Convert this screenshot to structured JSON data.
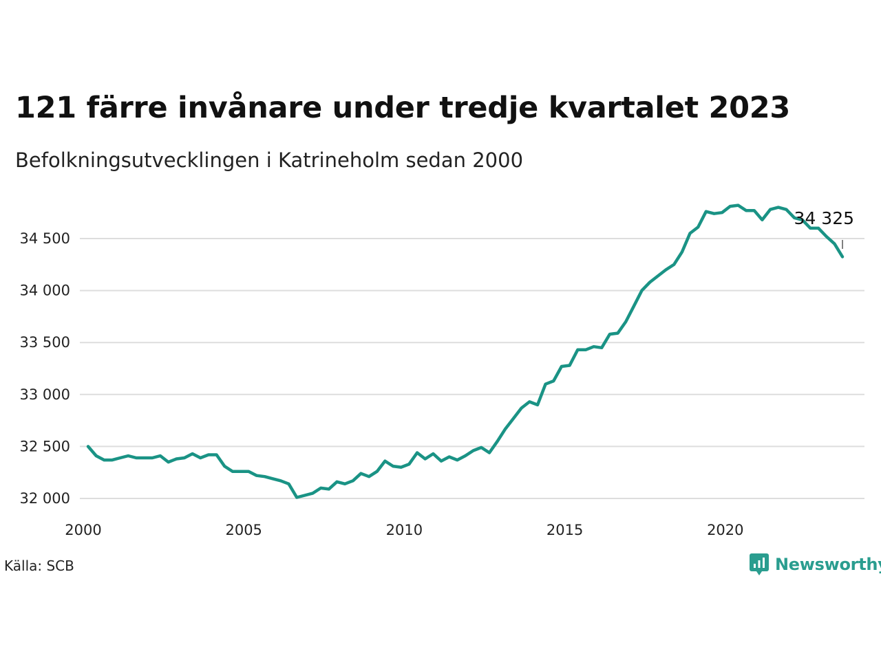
{
  "header": {
    "title": "121 färre invånare under tredje kvartalet 2023",
    "subtitle": "Befolkningsutvecklingen i Katrineholm sedan 2000"
  },
  "footer": {
    "source": "Källa: SCB",
    "brand": "Newsworthy",
    "brand_icon": "bar-chart-speech-bubble-icon"
  },
  "colors": {
    "line": "#1a9385",
    "grid": "#dddddd",
    "brand": "#2a9d8f"
  },
  "chart_data": {
    "type": "line",
    "title": "121 färre invånare under tredje kvartalet 2023",
    "subtitle": "Befolkningsutvecklingen i Katrineholm sedan 2000",
    "xlabel": "",
    "ylabel": "",
    "xlim": [
      2000,
      2024.6
    ],
    "ylim": [
      31950,
      34850
    ],
    "x_ticks": [
      2000,
      2005,
      2010,
      2015,
      2020
    ],
    "x_tick_labels": [
      "2000",
      "2005",
      "2010",
      "2015",
      "2020"
    ],
    "y_ticks": [
      32000,
      32500,
      33000,
      33500,
      34000,
      34500
    ],
    "y_tick_labels": [
      "32 000",
      "32 500",
      "33 000",
      "33 500",
      "34 000",
      "34 500"
    ],
    "grid": "horizontal",
    "last_value_label": "34 325",
    "series": [
      {
        "x": [
          2000.0,
          2000.25,
          2000.5,
          2000.75,
          2001.0,
          2001.25,
          2001.5,
          2001.75,
          2002.0,
          2002.25,
          2002.5,
          2002.75,
          2003.0,
          2003.25,
          2003.5,
          2003.75,
          2004.0,
          2004.25,
          2004.5,
          2004.75,
          2005.0,
          2005.25,
          2005.5,
          2005.75,
          2006.0,
          2006.25,
          2006.5,
          2006.75,
          2007.0,
          2007.25,
          2007.5,
          2007.75,
          2008.0,
          2008.25,
          2008.5,
          2008.75,
          2009.0,
          2009.25,
          2009.5,
          2009.75,
          2010.0,
          2010.25,
          2010.5,
          2010.75,
          2011.0,
          2011.25,
          2011.5,
          2011.75,
          2012.0,
          2012.25,
          2012.5,
          2012.75,
          2013.0,
          2013.25,
          2013.5,
          2013.75,
          2014.0,
          2014.25,
          2014.5,
          2014.75,
          2015.0,
          2015.25,
          2015.5,
          2015.75,
          2016.0,
          2016.25,
          2016.5,
          2016.75,
          2017.0,
          2017.25,
          2017.5,
          2017.75,
          2018.0,
          2018.25,
          2018.5,
          2018.75,
          2019.0,
          2019.25,
          2019.5,
          2019.75,
          2020.0,
          2020.25,
          2020.5,
          2020.75,
          2021.0,
          2021.25,
          2021.5,
          2021.75,
          2022.0,
          2022.25,
          2022.5,
          2022.75,
          2023.0,
          2023.25,
          2023.5
        ],
        "values": [
          32500,
          32410,
          32370,
          32370,
          32390,
          32410,
          32390,
          32390,
          32390,
          32410,
          32350,
          32380,
          32390,
          32430,
          32390,
          32420,
          32420,
          32310,
          32260,
          32260,
          32260,
          32220,
          32210,
          32190,
          32170,
          32140,
          32010,
          32030,
          32050,
          32100,
          32090,
          32160,
          32140,
          32170,
          32240,
          32210,
          32260,
          32360,
          32310,
          32300,
          32330,
          32440,
          32380,
          32430,
          32360,
          32400,
          32370,
          32410,
          32460,
          32490,
          32440,
          32550,
          32670,
          32770,
          32870,
          32930,
          32900,
          33100,
          33130,
          33270,
          33280,
          33430,
          33430,
          33460,
          33450,
          33580,
          33590,
          33700,
          33850,
          34000,
          34080,
          34140,
          34200,
          34250,
          34370,
          34550,
          34610,
          34760,
          34740,
          34750,
          34810,
          34820,
          34770,
          34770,
          34680,
          34780,
          34800,
          34780,
          34700,
          34680,
          34600,
          34600,
          34520,
          34450,
          34325
        ]
      }
    ]
  }
}
